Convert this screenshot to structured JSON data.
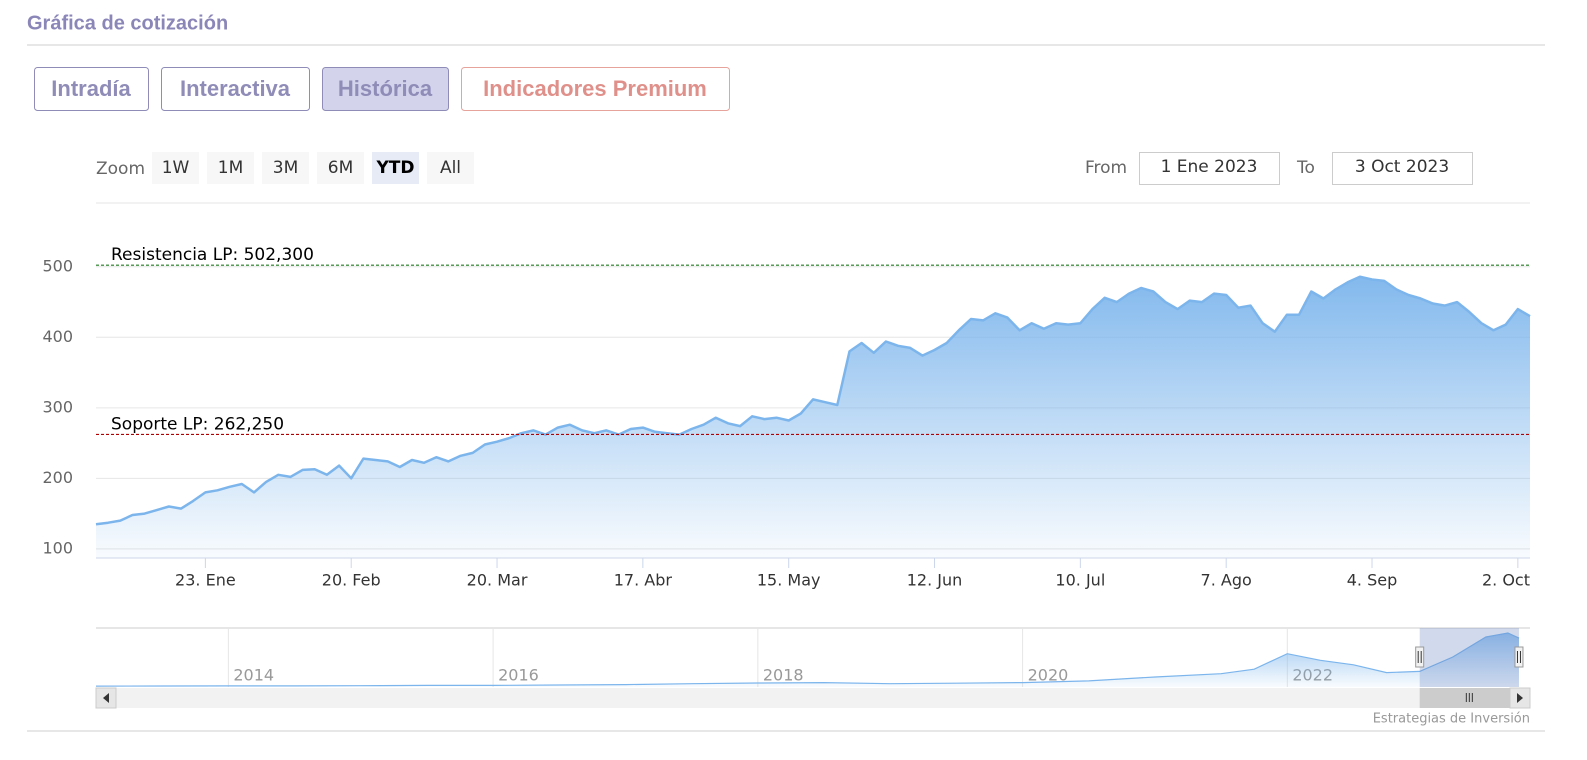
{
  "header": {
    "title": "Gráfica de cotización"
  },
  "tabs": [
    "Intradía",
    "Interactiva",
    "Histórica",
    "Indicadores Premium"
  ],
  "active_tab": 2,
  "range_selector": {
    "zoom_label": "Zoom",
    "buttons": [
      "1W",
      "1M",
      "3M",
      "6M",
      "YTD",
      "All"
    ],
    "active": 4,
    "from_label": "From",
    "from": "1 Ene 2023",
    "to_label": "To",
    "to": "3 Oct 2023"
  },
  "chart_data": {
    "type": "area",
    "x": [
      "2023-01-02",
      "2023-01-04",
      "2023-01-06",
      "2023-01-09",
      "2023-01-11",
      "2023-01-13",
      "2023-01-16",
      "2023-01-18",
      "2023-01-20",
      "2023-01-23",
      "2023-01-25",
      "2023-01-27",
      "2023-01-30",
      "2023-02-01",
      "2023-02-03",
      "2023-02-06",
      "2023-02-08",
      "2023-02-10",
      "2023-02-13",
      "2023-02-15",
      "2023-02-17",
      "2023-02-20",
      "2023-02-22",
      "2023-02-24",
      "2023-02-27",
      "2023-03-01",
      "2023-03-03",
      "2023-03-06",
      "2023-03-08",
      "2023-03-10",
      "2023-03-13",
      "2023-03-15",
      "2023-03-17",
      "2023-03-20",
      "2023-03-22",
      "2023-03-24",
      "2023-03-27",
      "2023-03-29",
      "2023-03-31",
      "2023-04-03",
      "2023-04-05",
      "2023-04-07",
      "2023-04-10",
      "2023-04-12",
      "2023-04-14",
      "2023-04-17",
      "2023-04-19",
      "2023-04-21",
      "2023-04-24",
      "2023-04-26",
      "2023-04-28",
      "2023-05-01",
      "2023-05-03",
      "2023-05-05",
      "2023-05-08",
      "2023-05-10",
      "2023-05-12",
      "2023-05-15",
      "2023-05-17",
      "2023-05-19",
      "2023-05-22",
      "2023-05-24",
      "2023-05-26",
      "2023-05-29",
      "2023-05-31",
      "2023-06-02",
      "2023-06-05",
      "2023-06-07",
      "2023-06-09",
      "2023-06-12",
      "2023-06-14",
      "2023-06-16",
      "2023-06-19",
      "2023-06-21",
      "2023-06-23",
      "2023-06-26",
      "2023-06-28",
      "2023-06-30",
      "2023-07-03",
      "2023-07-05",
      "2023-07-07",
      "2023-07-10",
      "2023-07-12",
      "2023-07-14",
      "2023-07-17",
      "2023-07-19",
      "2023-07-21",
      "2023-07-24",
      "2023-07-26",
      "2023-07-28",
      "2023-07-31",
      "2023-08-02",
      "2023-08-04",
      "2023-08-07",
      "2023-08-09",
      "2023-08-11",
      "2023-08-14",
      "2023-08-16",
      "2023-08-18",
      "2023-08-21",
      "2023-08-23",
      "2023-08-25",
      "2023-08-28",
      "2023-08-30",
      "2023-09-01",
      "2023-09-04",
      "2023-09-06",
      "2023-09-08",
      "2023-09-11",
      "2023-09-13",
      "2023-09-15",
      "2023-09-18",
      "2023-09-20",
      "2023-09-22",
      "2023-09-25",
      "2023-09-27",
      "2023-09-29",
      "2023-10-02",
      "2023-10-03"
    ],
    "series": [
      {
        "color": "#7cb5ec",
        "values": [
          135,
          137,
          140,
          148,
          150,
          155,
          160,
          157,
          168,
          180,
          183,
          188,
          192,
          180,
          195,
          205,
          202,
          212,
          213,
          205,
          218,
          200,
          228,
          226,
          224,
          216,
          226,
          222,
          230,
          224,
          232,
          236,
          248,
          252,
          257,
          264,
          268,
          262,
          272,
          276,
          268,
          264,
          268,
          262,
          270,
          272,
          266,
          264,
          262,
          270,
          276,
          286,
          278,
          274,
          288,
          284,
          286,
          282,
          292,
          312,
          308,
          304,
          380,
          392,
          378,
          394,
          388,
          385,
          374,
          382,
          392,
          410,
          426,
          424,
          434,
          428,
          410,
          420,
          412,
          420,
          418,
          420,
          440,
          456,
          450,
          462,
          470,
          465,
          450,
          440,
          452,
          450,
          462,
          460,
          442,
          445,
          420,
          408,
          432,
          432,
          465,
          455,
          468,
          478,
          486,
          482,
          480,
          468,
          460,
          455,
          448,
          445,
          450,
          436,
          420,
          410,
          418,
          440,
          430
        ]
      }
    ],
    "ylim": [
      87,
      520
    ],
    "yticks": [
      100,
      200,
      300,
      400,
      500
    ],
    "xticks": [
      {
        "value": "2023-01-23",
        "label": "23. Ene"
      },
      {
        "value": "2023-02-20",
        "label": "20. Feb"
      },
      {
        "value": "2023-03-20",
        "label": "20. Mar"
      },
      {
        "value": "2023-04-17",
        "label": "17. Abr"
      },
      {
        "value": "2023-05-15",
        "label": "15. May"
      },
      {
        "value": "2023-06-12",
        "label": "12. Jun"
      },
      {
        "value": "2023-07-10",
        "label": "10. Jul"
      },
      {
        "value": "2023-08-07",
        "label": "7. Ago"
      },
      {
        "value": "2023-09-04",
        "label": "4. Sep"
      },
      {
        "value": "2023-10-02",
        "label": "2. Oct"
      }
    ],
    "grid": true,
    "plot_lines": [
      {
        "value": 502.3,
        "label": "Resistencia LP: 502,300",
        "color": "#1f7a1f"
      },
      {
        "value": 262.25,
        "label": "Soporte LP: 262,250",
        "color": "#b00000"
      }
    ]
  },
  "navigator": {
    "x": [
      "2013-01",
      "2013-07",
      "2014-01",
      "2014-07",
      "2015-01",
      "2015-07",
      "2016-01",
      "2016-07",
      "2017-01",
      "2017-07",
      "2018-01",
      "2018-07",
      "2019-01",
      "2019-07",
      "2020-01",
      "2020-07",
      "2021-01",
      "2021-07",
      "2021-10",
      "2022-01",
      "2022-04",
      "2022-07",
      "2022-10",
      "2023-01",
      "2023-04",
      "2023-07",
      "2023-09",
      "2023-10"
    ],
    "values": [
      8,
      9,
      10,
      10,
      12,
      14,
      14,
      18,
      22,
      30,
      36,
      40,
      30,
      34,
      40,
      55,
      90,
      120,
      160,
      300,
      240,
      200,
      130,
      140,
      270,
      450,
      486,
      440
    ],
    "xlim": [
      "2013-01",
      "2023-11"
    ],
    "xticks": [
      "2014",
      "2016",
      "2018",
      "2020",
      "2022"
    ],
    "selected": [
      "2023-01",
      "2023-10"
    ]
  },
  "credits": "Estrategias de Inversión"
}
